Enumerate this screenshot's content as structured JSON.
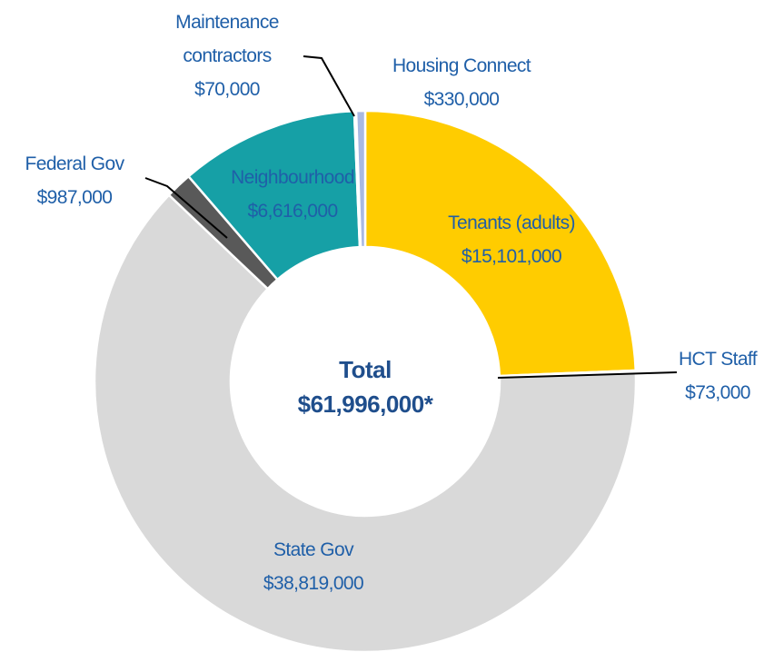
{
  "chart_data": {
    "type": "donut",
    "center_title": "Total",
    "center_value": "$61,996,000*",
    "categories": [
      "Tenants (adults)",
      "HCT Staff",
      "State Gov",
      "Federal Gov",
      "Neighbourhood",
      "Maintenance contractors",
      "Housing Connect"
    ],
    "values": [
      15101000,
      73000,
      38819000,
      987000,
      6616000,
      70000,
      330000
    ],
    "value_labels": [
      "$15,101,000",
      "$73,000",
      "$38,819,000",
      "$987,000",
      "$6,616,000",
      "$70,000",
      "$330,000"
    ],
    "colors": [
      "#ffcc00",
      "#eeeeee",
      "#d9d9d9",
      "#595959",
      "#16a0a6",
      "#e07878",
      "#a9b9e2"
    ]
  }
}
